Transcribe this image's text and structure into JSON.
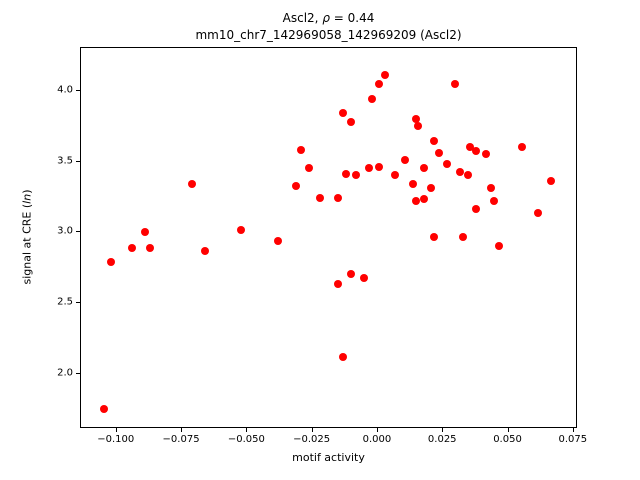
{
  "chart_data": {
    "type": "scatter",
    "title": "Ascl2, ρ = 0.44",
    "title_parts": {
      "prefix": "Ascl2, ",
      "rho": "ρ",
      "suffix": " = 0.44"
    },
    "subtitle": "mm10_chr7_142969058_142969209 (Ascl2)",
    "xlabel": "motif activity",
    "ylabel": "signal at CRE (ln)",
    "ylabel_parts": {
      "prefix": "signal at CRE (",
      "italic": "ln",
      "suffix": ")"
    },
    "marker_color": "#ff0000",
    "grid": false,
    "legend": "none",
    "xlim": [
      -0.1137,
      0.0766
    ],
    "ylim": [
      1.611,
      4.304
    ],
    "x_tick_values": [
      -0.1,
      -0.075,
      -0.05,
      -0.025,
      0.0,
      0.025,
      0.05,
      0.075
    ],
    "x_tick_labels": [
      "−0.100",
      "−0.075",
      "−0.050",
      "−0.025",
      "0.000",
      "0.025",
      "0.050",
      "0.075"
    ],
    "y_tick_values": [
      2.0,
      2.5,
      3.0,
      3.5,
      4.0
    ],
    "y_tick_labels": [
      "2.0",
      "2.5",
      "3.0",
      "3.5",
      "4.0"
    ],
    "points": [
      [
        -0.105,
        1.74
      ],
      [
        -0.102,
        2.78
      ],
      [
        -0.094,
        2.88
      ],
      [
        -0.089,
        3.0
      ],
      [
        -0.087,
        2.88
      ],
      [
        -0.071,
        3.34
      ],
      [
        -0.066,
        2.86
      ],
      [
        -0.052,
        3.01
      ],
      [
        -0.038,
        2.93
      ],
      [
        -0.031,
        3.32
      ],
      [
        -0.029,
        3.58
      ],
      [
        -0.026,
        3.45
      ],
      [
        -0.022,
        3.24
      ],
      [
        -0.015,
        3.24
      ],
      [
        -0.015,
        2.63
      ],
      [
        -0.013,
        3.84
      ],
      [
        -0.013,
        2.11
      ],
      [
        -0.012,
        3.41
      ],
      [
        -0.01,
        3.78
      ],
      [
        -0.01,
        2.7
      ],
      [
        -0.008,
        3.4
      ],
      [
        -0.005,
        2.67
      ],
      [
        -0.003,
        3.45
      ],
      [
        -0.002,
        3.94
      ],
      [
        0.001,
        4.05
      ],
      [
        0.001,
        3.46
      ],
      [
        0.003,
        4.11
      ],
      [
        0.007,
        3.4
      ],
      [
        0.011,
        3.51
      ],
      [
        0.014,
        3.34
      ],
      [
        0.015,
        3.8
      ],
      [
        0.015,
        3.22
      ],
      [
        0.016,
        3.75
      ],
      [
        0.018,
        3.23
      ],
      [
        0.018,
        3.45
      ],
      [
        0.021,
        3.31
      ],
      [
        0.022,
        3.64
      ],
      [
        0.022,
        2.96
      ],
      [
        0.024,
        3.56
      ],
      [
        0.027,
        3.48
      ],
      [
        0.03,
        4.05
      ],
      [
        0.032,
        3.42
      ],
      [
        0.033,
        2.96
      ],
      [
        0.035,
        3.4
      ],
      [
        0.036,
        3.6
      ],
      [
        0.038,
        3.57
      ],
      [
        0.038,
        3.16
      ],
      [
        0.042,
        3.55
      ],
      [
        0.044,
        3.31
      ],
      [
        0.045,
        3.22
      ],
      [
        0.047,
        2.9
      ],
      [
        0.056,
        3.6
      ],
      [
        0.062,
        3.13
      ],
      [
        0.067,
        3.36
      ]
    ]
  }
}
